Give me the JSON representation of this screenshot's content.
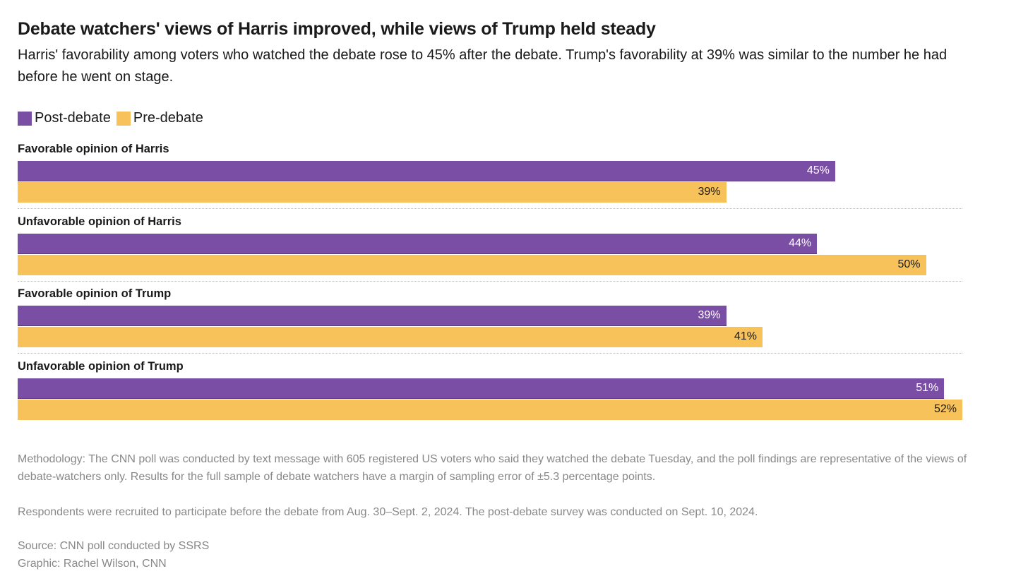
{
  "title": "Debate watchers' views of Harris improved, while views of Trump held steady",
  "subtitle": "Harris' favorability among voters who watched the debate rose to 45% after the debate. Trump's favorability at 39% was similar to the number he had before he went on stage.",
  "chart_data": {
    "type": "bar",
    "orientation": "horizontal",
    "categories": [
      "Favorable opinion of Harris",
      "Unfavorable opinion of Harris",
      "Favorable opinion of Trump",
      "Unfavorable opinion of Trump"
    ],
    "series": [
      {
        "name": "Post-debate",
        "color": "#7b4ea6",
        "values": [
          45,
          44,
          39,
          51
        ]
      },
      {
        "name": "Pre-debate",
        "color": "#f7c25a",
        "values": [
          39,
          50,
          41,
          52
        ]
      }
    ],
    "xlim": [
      0,
      52
    ],
    "unit": "%",
    "legend": "top-left"
  },
  "notes": {
    "methodology": "Methodology: The CNN poll was conducted by text message with 605 registered US voters who said they watched the debate Tuesday, and the poll findings are representative of the views of debate-watchers only. Results for the full sample of debate watchers have a margin of sampling error of ±5.3 percentage points.",
    "recruitment": "Respondents were recruited to participate before the debate from Aug. 30–Sept. 2, 2024. The post-debate survey was conducted on Sept. 10, 2024.",
    "source": "Source: CNN poll conducted by SSRS",
    "graphic": "Graphic: Rachel Wilson, CNN"
  }
}
